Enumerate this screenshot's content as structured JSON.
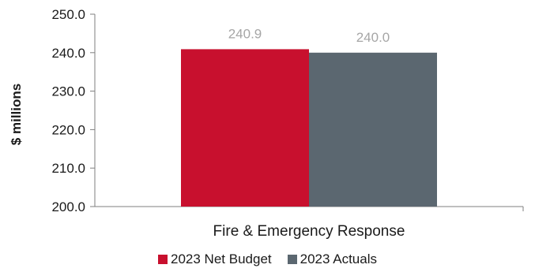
{
  "chart_data": {
    "type": "bar",
    "categories": [
      "Fire & Emergency Response"
    ],
    "series": [
      {
        "name": "2023 Net Budget",
        "values": [
          240.9
        ],
        "color": "#c8102e"
      },
      {
        "name": "2023 Actuals",
        "values": [
          240.0
        ],
        "color": "#5b6770"
      }
    ],
    "data_labels": [
      "240.9",
      "240.0"
    ],
    "ylabel": "$ millions",
    "xlabel": "",
    "ylim": [
      200.0,
      250.0
    ],
    "yticks": [
      "200.0",
      "210.0",
      "220.0",
      "230.0",
      "240.0",
      "250.0"
    ],
    "grid": false,
    "legend_position": "bottom"
  }
}
